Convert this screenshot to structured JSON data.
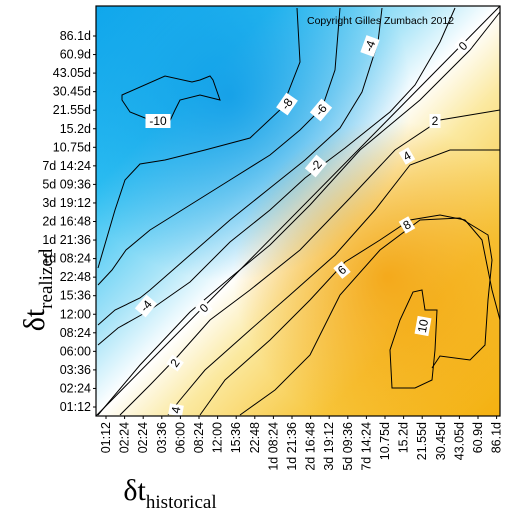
{
  "chart_data": {
    "type": "heatmap",
    "subtype": "contour",
    "copyright": "Copyright Gilles Zumbach 2012",
    "xlabel": {
      "main": "δt",
      "sub": "historical"
    },
    "ylabel": {
      "main": "δt",
      "sub": "realized"
    },
    "x_ticks": [
      "01:12",
      "02:24",
      "02:24",
      "03:36",
      "06:00",
      "08:24",
      "12:00",
      "15:36",
      "22:48",
      "1d 08:24",
      "1d 21:36",
      "2d 16:48",
      "3d 19:12",
      "5d 09:36",
      "7d 14:24",
      "10.75d",
      "15.2d",
      "21.55d",
      "30.45d",
      "43.05d",
      "60.9d",
      "86.1d"
    ],
    "y_ticks": [
      "01:12",
      "02:24",
      "03:36",
      "06:00",
      "08:24",
      "12:00",
      "15:36",
      "22:48",
      "1d 08:24",
      "1d 21:36",
      "2d 16:48",
      "3d 19:12",
      "5d 09:36",
      "7d 14:24",
      "10.75d",
      "15.2d",
      "21.55d",
      "30.45d",
      "43.05d",
      "60.9d",
      "86.1d"
    ],
    "contour_levels": [
      -10,
      -8,
      -6,
      -4,
      -2,
      0,
      2,
      4,
      6,
      8,
      10
    ],
    "contour_labels": [
      {
        "text": "-10"
      },
      {
        "text": "-8"
      },
      {
        "text": "-6"
      },
      {
        "text": "-4"
      },
      {
        "text": "-2"
      },
      {
        "text": "0"
      },
      {
        "text": "2"
      },
      {
        "text": "4"
      },
      {
        "text": "6"
      },
      {
        "text": "8"
      },
      {
        "text": "-4"
      },
      {
        "text": "0"
      },
      {
        "text": "2"
      },
      {
        "text": "4"
      },
      {
        "text": "10"
      }
    ],
    "colors": {
      "low": "#1fb3f0",
      "mid": "#ffffff",
      "high": "#f4a800"
    },
    "grid": false,
    "legend": "none"
  }
}
